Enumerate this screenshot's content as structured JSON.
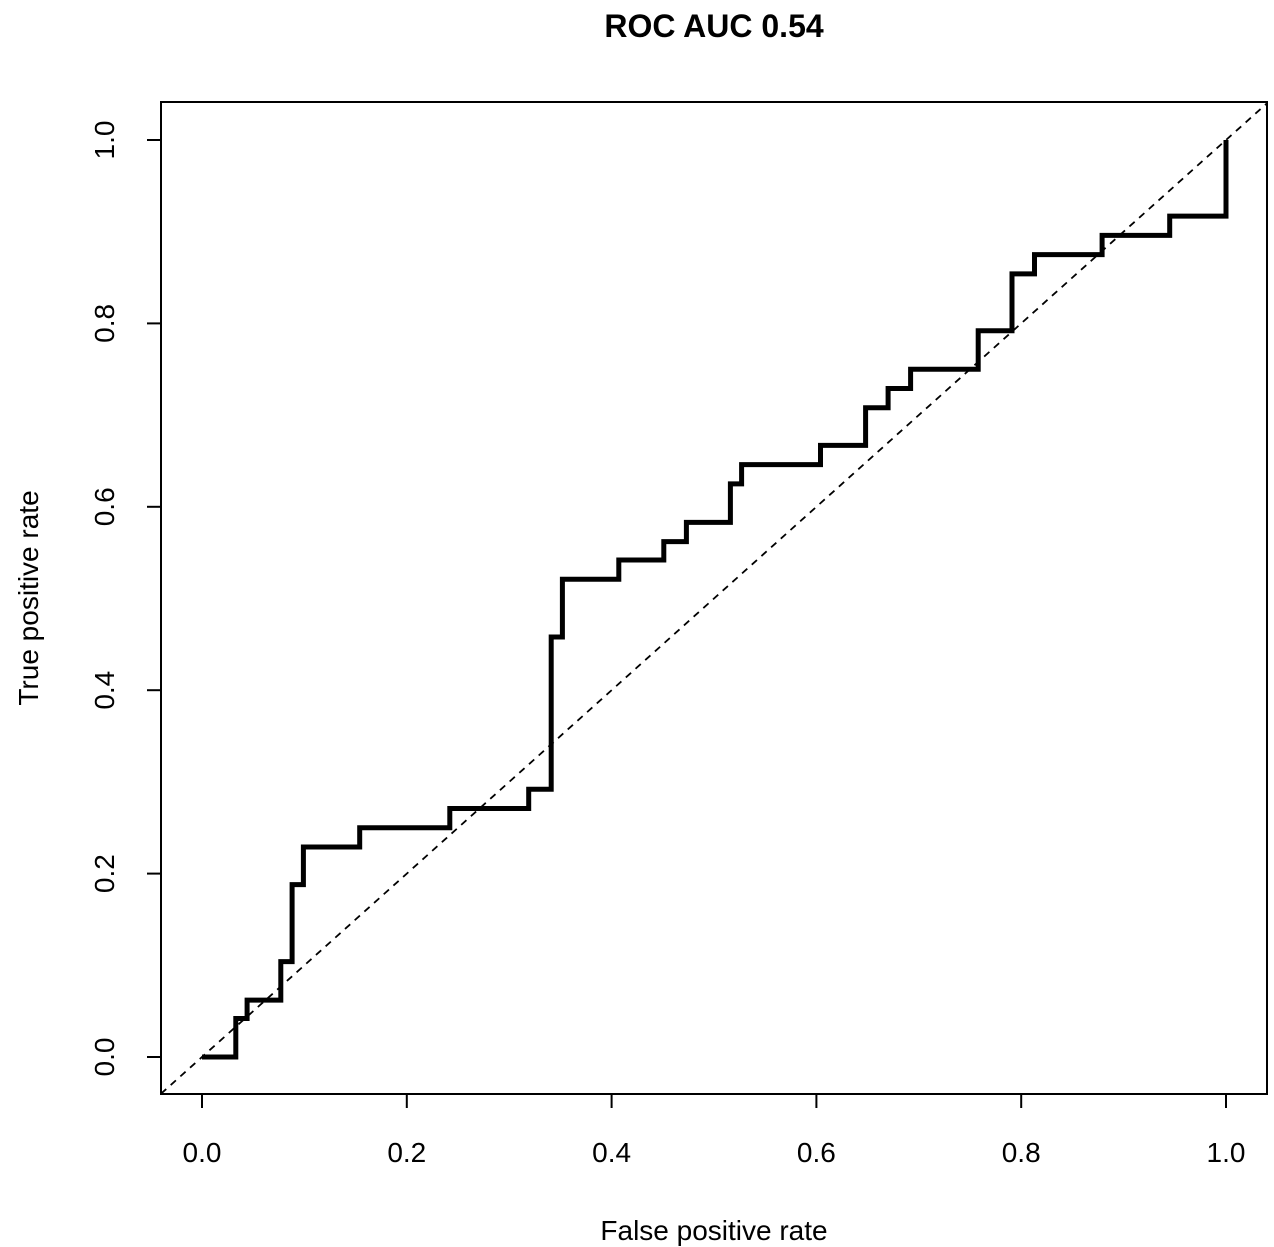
{
  "chart_data": {
    "type": "line",
    "title": "ROC AUC 0.54",
    "xlabel": "False positive rate",
    "ylabel": "True positive rate",
    "xlim": [
      0,
      1
    ],
    "ylim": [
      0,
      1
    ],
    "x_ticks": [
      "0.0",
      "0.2",
      "0.4",
      "0.6",
      "0.8",
      "1.0"
    ],
    "y_ticks": [
      "0.0",
      "0.2",
      "0.4",
      "0.6",
      "0.8",
      "1.0"
    ],
    "grid": false,
    "series": [
      {
        "style": "step",
        "color": "#000000",
        "points": [
          [
            0.0,
            0.0
          ],
          [
            0.033,
            0.0
          ],
          [
            0.033,
            0.042
          ],
          [
            0.044,
            0.042
          ],
          [
            0.044,
            0.062
          ],
          [
            0.077,
            0.062
          ],
          [
            0.077,
            0.104
          ],
          [
            0.088,
            0.104
          ],
          [
            0.088,
            0.188
          ],
          [
            0.099,
            0.188
          ],
          [
            0.099,
            0.229
          ],
          [
            0.154,
            0.229
          ],
          [
            0.154,
            0.25
          ],
          [
            0.242,
            0.25
          ],
          [
            0.242,
            0.271
          ],
          [
            0.319,
            0.271
          ],
          [
            0.319,
            0.292
          ],
          [
            0.341,
            0.292
          ],
          [
            0.341,
            0.458
          ],
          [
            0.352,
            0.458
          ],
          [
            0.352,
            0.521
          ],
          [
            0.407,
            0.521
          ],
          [
            0.407,
            0.542
          ],
          [
            0.451,
            0.542
          ],
          [
            0.451,
            0.562
          ],
          [
            0.473,
            0.562
          ],
          [
            0.473,
            0.583
          ],
          [
            0.516,
            0.583
          ],
          [
            0.516,
            0.625
          ],
          [
            0.527,
            0.625
          ],
          [
            0.527,
            0.646
          ],
          [
            0.604,
            0.646
          ],
          [
            0.604,
            0.667
          ],
          [
            0.648,
            0.667
          ],
          [
            0.648,
            0.708
          ],
          [
            0.67,
            0.708
          ],
          [
            0.67,
            0.729
          ],
          [
            0.692,
            0.729
          ],
          [
            0.692,
            0.75
          ],
          [
            0.758,
            0.75
          ],
          [
            0.758,
            0.792
          ],
          [
            0.791,
            0.792
          ],
          [
            0.791,
            0.854
          ],
          [
            0.813,
            0.854
          ],
          [
            0.813,
            0.875
          ],
          [
            0.879,
            0.875
          ],
          [
            0.879,
            0.896
          ],
          [
            0.945,
            0.896
          ],
          [
            0.945,
            0.917
          ],
          [
            1.0,
            0.917
          ],
          [
            1.0,
            1.0
          ]
        ]
      },
      {
        "style": "dashed",
        "color": "#000000",
        "points": [
          [
            0,
            0
          ],
          [
            1,
            1
          ]
        ]
      }
    ]
  }
}
